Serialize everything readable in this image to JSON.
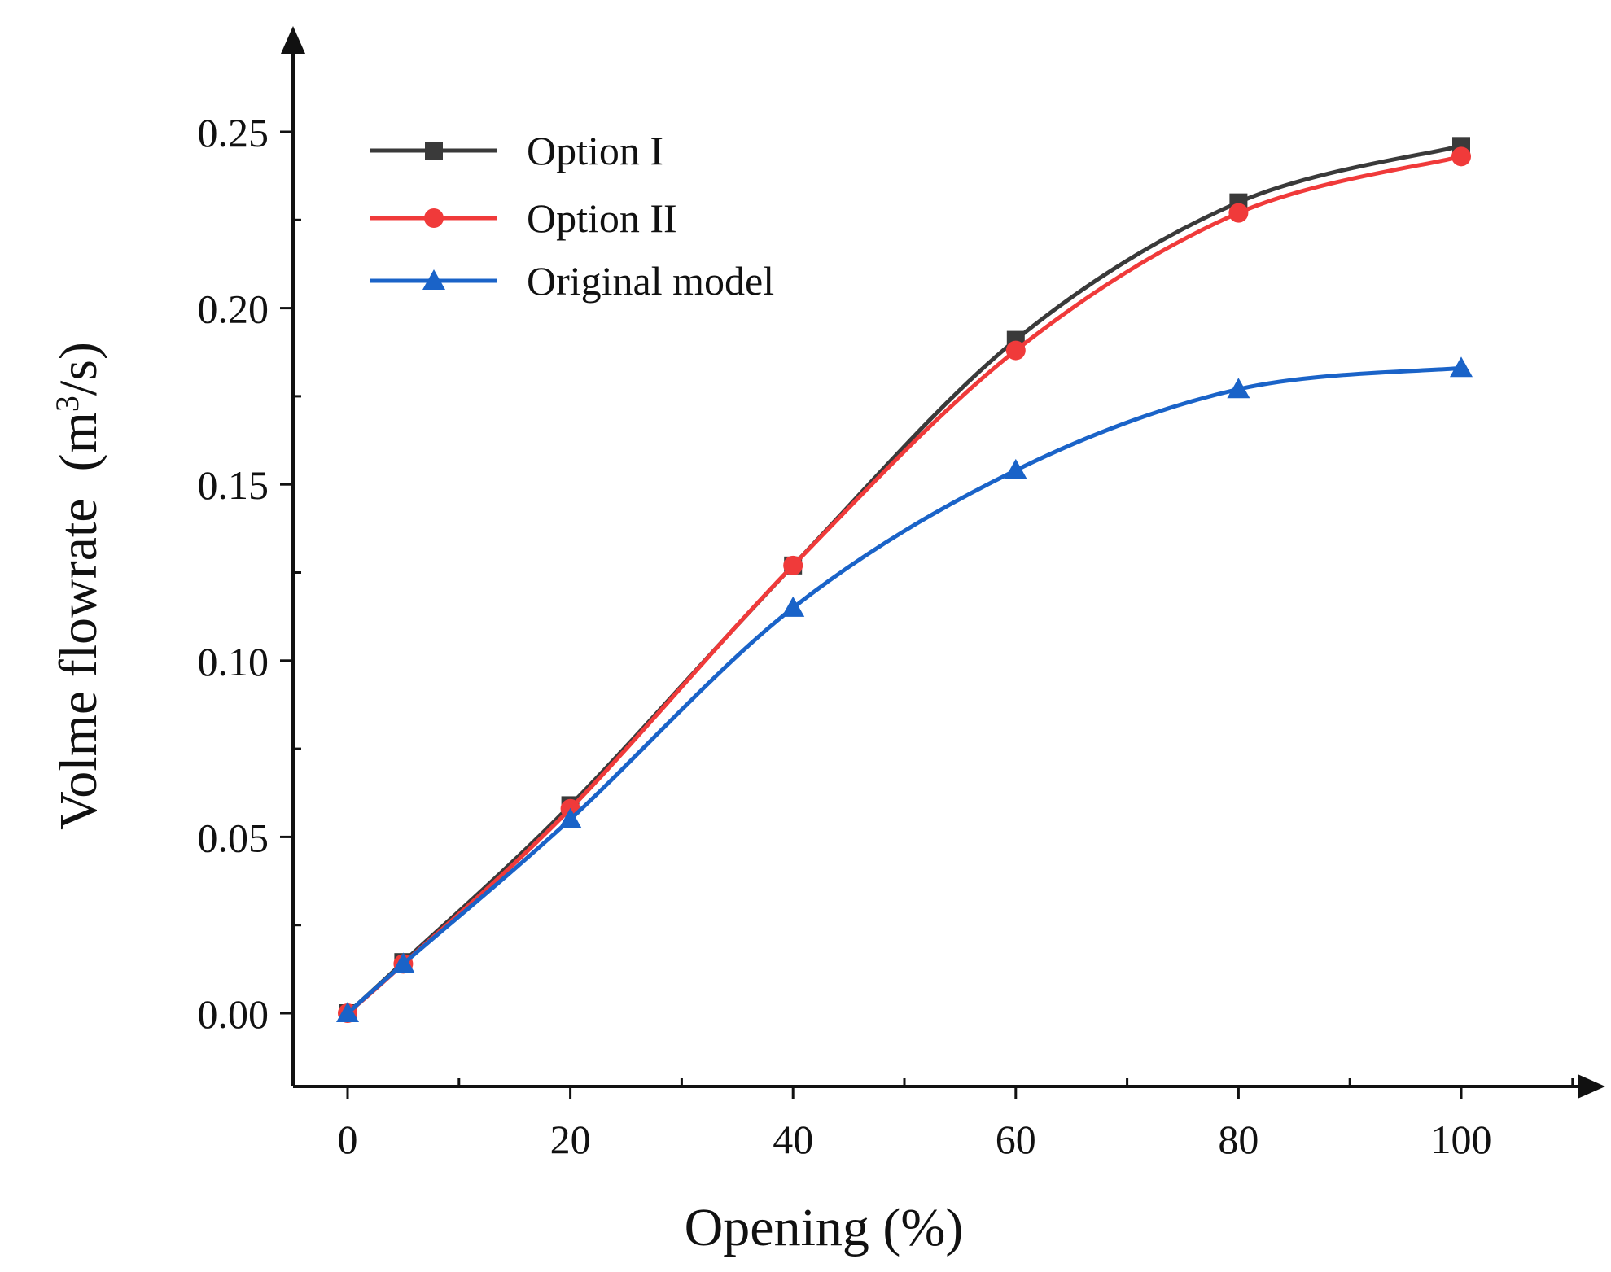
{
  "chart_data": {
    "type": "line",
    "title": "",
    "xlabel": "Opening (%)",
    "ylabel_main": "Volme flowrate  (m",
    "ylabel_sup": "3",
    "ylabel_tail": "/s)",
    "xlim": [
      -5,
      112
    ],
    "ylim": [
      -0.02,
      0.27
    ],
    "xticks": [
      0,
      20,
      40,
      60,
      80,
      100
    ],
    "xtick_labels": [
      "0",
      "20",
      "40",
      "60",
      "80",
      "100"
    ],
    "yticks": [
      0.0,
      0.05,
      0.1,
      0.15,
      0.2,
      0.25
    ],
    "ytick_labels": [
      "0.00",
      "0.05",
      "0.10",
      "0.15",
      "0.20",
      "0.25"
    ],
    "grid": false,
    "legend_position": "top-left",
    "series": [
      {
        "name": "Option I",
        "color": "#3a3a3a",
        "marker": "square",
        "x": [
          0,
          5,
          20,
          40,
          60,
          80,
          100
        ],
        "values": [
          0.0,
          0.0145,
          0.059,
          0.127,
          0.191,
          0.23,
          0.246
        ]
      },
      {
        "name": "Option II",
        "color": "#f03a3a",
        "marker": "circle",
        "x": [
          0,
          5,
          20,
          40,
          60,
          80,
          100
        ],
        "values": [
          0.0,
          0.014,
          0.058,
          0.127,
          0.188,
          0.227,
          0.243
        ]
      },
      {
        "name": "Original model",
        "color": "#1a63c8",
        "marker": "triangle",
        "x": [
          0,
          5,
          20,
          40,
          60,
          80,
          100
        ],
        "values": [
          0.0,
          0.014,
          0.055,
          0.115,
          0.154,
          0.177,
          0.183
        ]
      }
    ]
  }
}
